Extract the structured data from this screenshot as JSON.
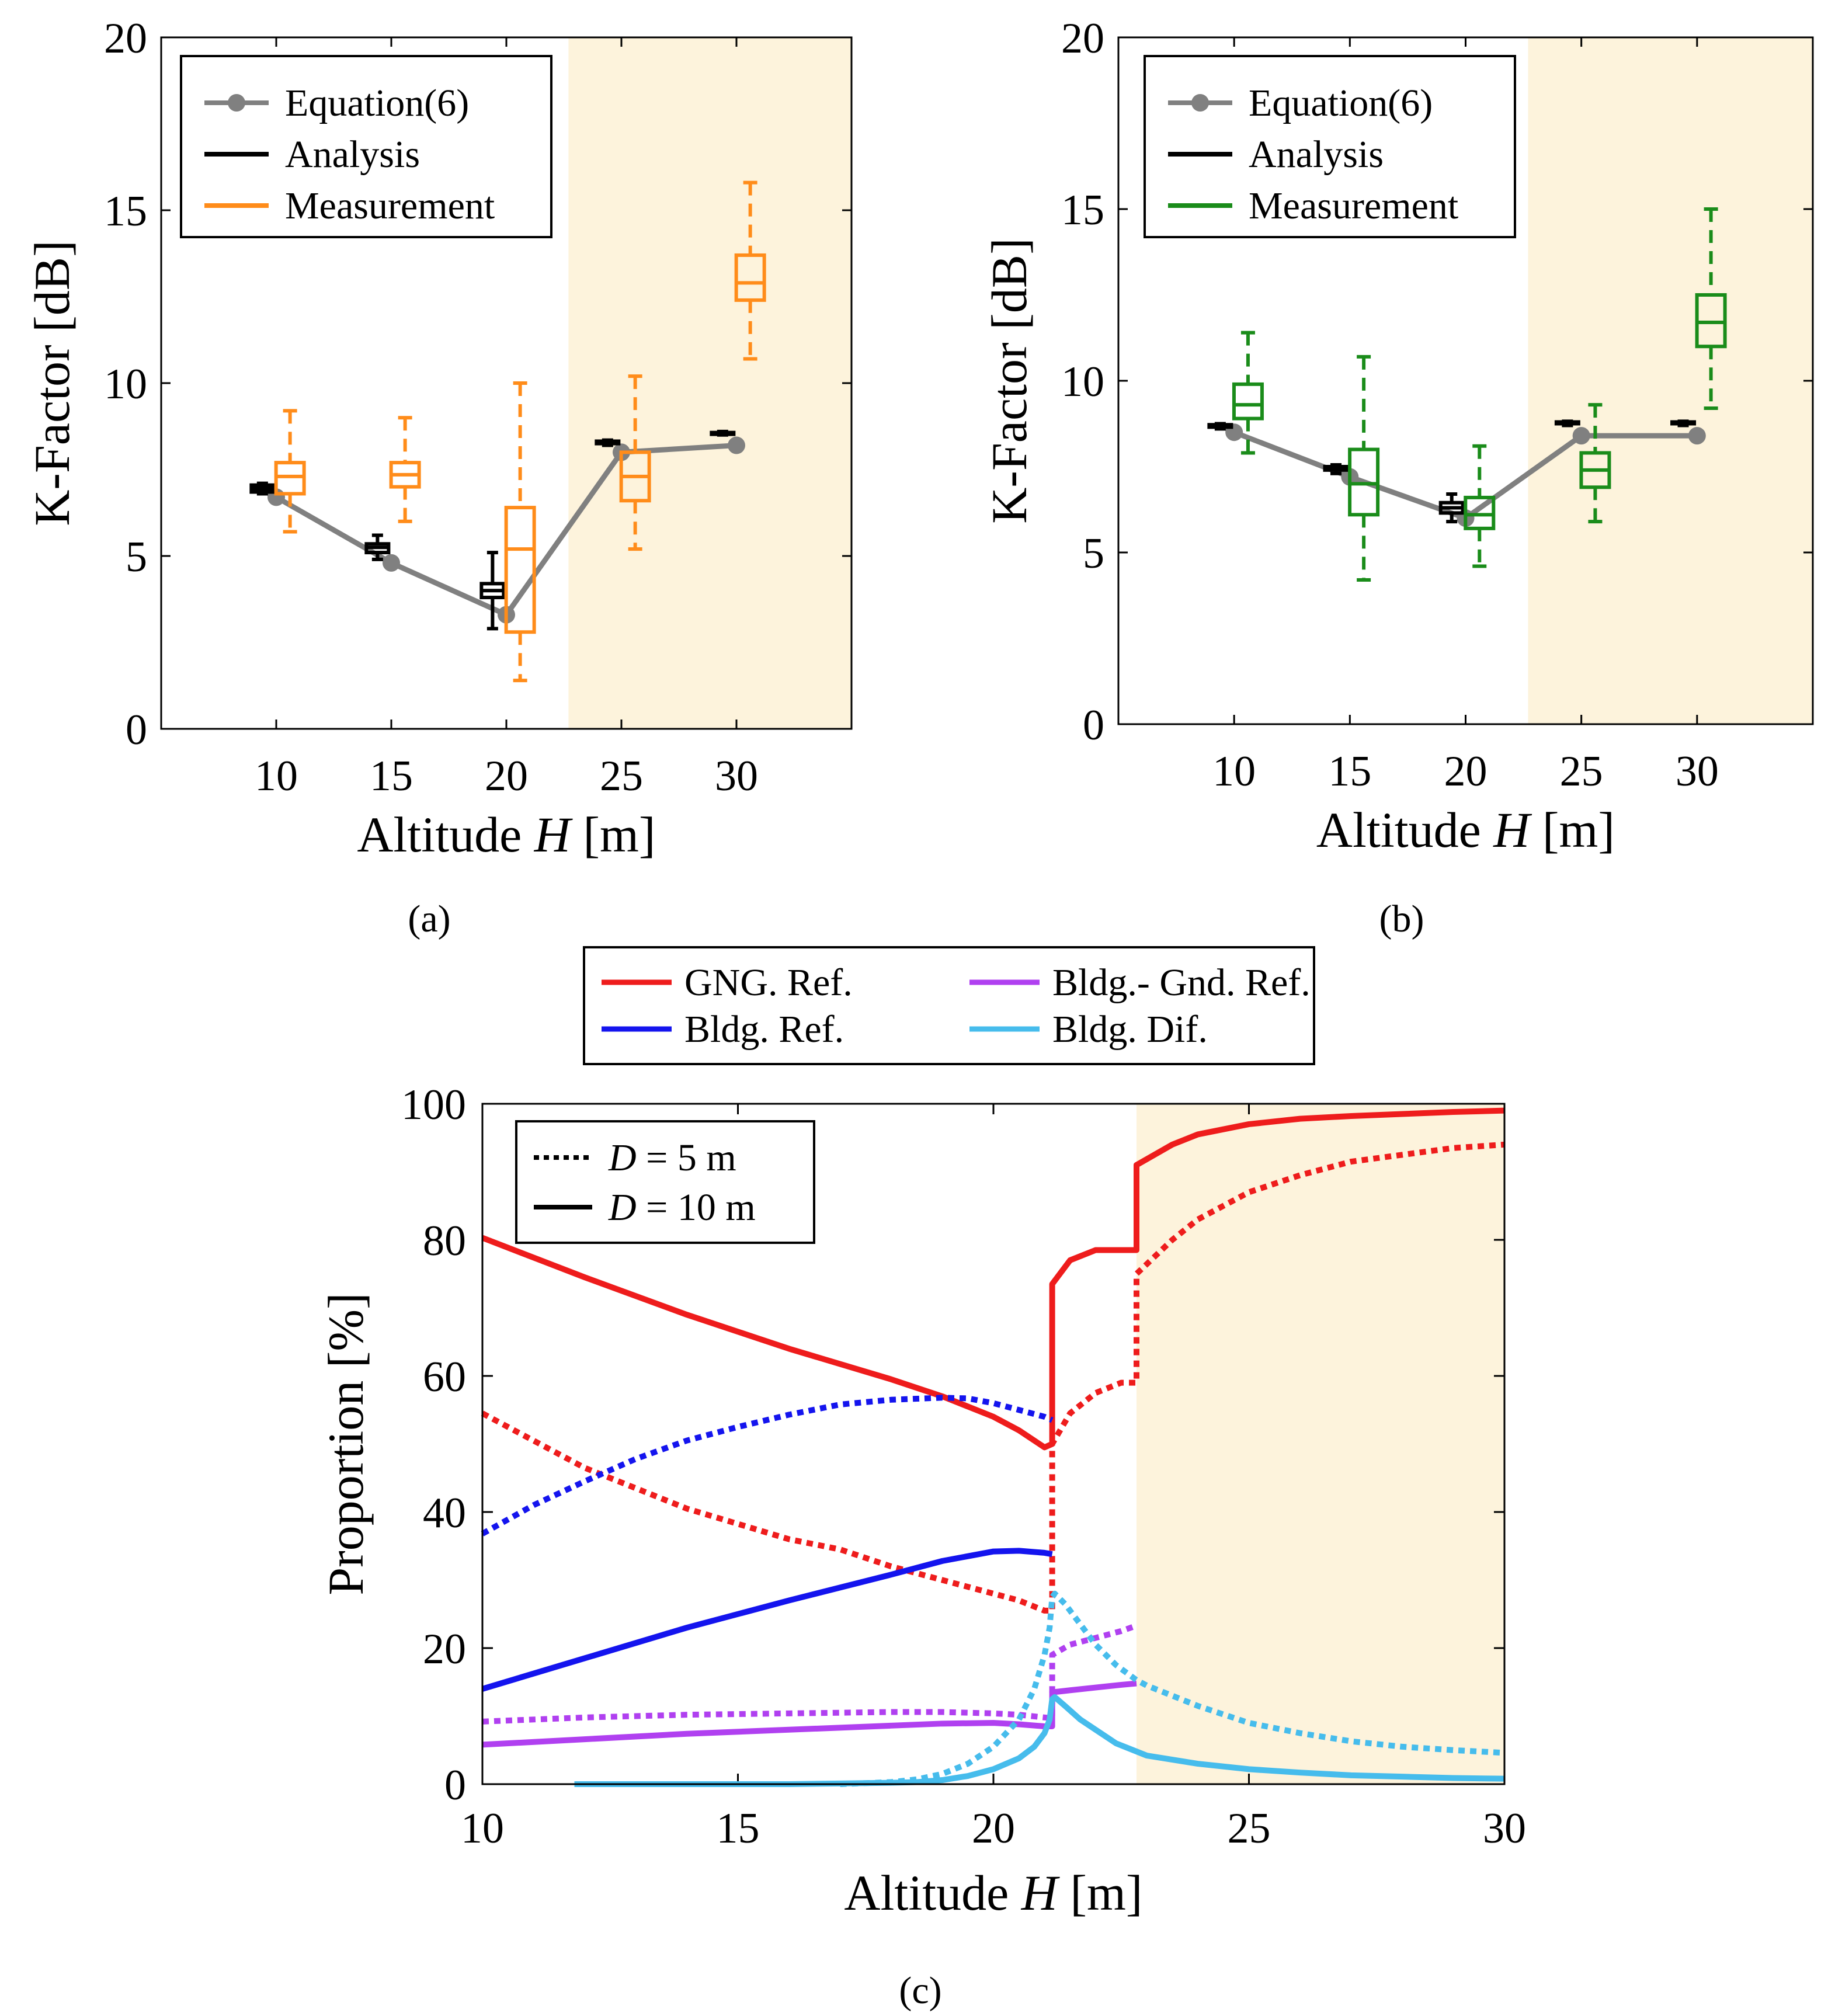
{
  "chart_data": [
    {
      "panel": "a",
      "type": "box",
      "caption": "(a)",
      "xlabel": "Altitude H [m]",
      "xlabel_parts": {
        "prefix": "Altitude ",
        "var": "H",
        "suffix": " [m]"
      },
      "ylabel": "K-Factor [dB]",
      "xlim": [
        5,
        35
      ],
      "ylim": [
        0,
        20
      ],
      "xticks": [
        10,
        15,
        20,
        25,
        30
      ],
      "yticks": [
        0,
        5,
        10,
        15,
        20
      ],
      "shaded_region": {
        "from": 22.7,
        "to": 35,
        "color": "#fdf3dc"
      },
      "legend": {
        "location": "top-left",
        "entries": [
          {
            "label": "Equation(6)",
            "color": "#808080",
            "marker": "circle"
          },
          {
            "label": "Analysis",
            "color": "#000000"
          },
          {
            "label": "Measurement",
            "color": "#ff8c1a"
          }
        ]
      },
      "equation": {
        "color": "#808080",
        "x": [
          10,
          15,
          20,
          25,
          30
        ],
        "y": [
          6.7,
          4.8,
          3.3,
          8.0,
          8.2
        ]
      },
      "analysis": {
        "color": "#000000",
        "offset": -0.6,
        "boxes": [
          {
            "x": 10,
            "whislo": 6.8,
            "q1": 6.85,
            "med": 6.95,
            "q3": 7.05,
            "whishi": 7.1
          },
          {
            "x": 15,
            "whislo": 4.9,
            "q1": 5.1,
            "med": 5.25,
            "q3": 5.35,
            "whishi": 5.6
          },
          {
            "x": 20,
            "whislo": 2.9,
            "q1": 3.8,
            "med": 4.0,
            "q3": 4.2,
            "whishi": 5.1
          },
          {
            "x": 25,
            "whislo": 8.2,
            "q1": 8.25,
            "med": 8.3,
            "q3": 8.32,
            "whishi": 8.35
          },
          {
            "x": 30,
            "whislo": 8.5,
            "q1": 8.52,
            "med": 8.55,
            "q3": 8.57,
            "whishi": 8.6
          }
        ]
      },
      "measurement": {
        "color": "#ff8c1a",
        "offset": 0.6,
        "boxes": [
          {
            "x": 10,
            "whislo": 5.7,
            "q1": 6.8,
            "med": 7.3,
            "q3": 7.7,
            "whishi": 9.2
          },
          {
            "x": 15,
            "whislo": 6.0,
            "q1": 7.0,
            "med": 7.35,
            "q3": 7.7,
            "whishi": 9.0
          },
          {
            "x": 20,
            "whislo": 1.4,
            "q1": 2.8,
            "med": 5.2,
            "q3": 6.4,
            "whishi": 10.0
          },
          {
            "x": 25,
            "whislo": 5.2,
            "q1": 6.6,
            "med": 7.3,
            "q3": 8.0,
            "whishi": 10.2
          },
          {
            "x": 30,
            "whislo": 10.7,
            "q1": 12.4,
            "med": 12.9,
            "q3": 13.7,
            "whishi": 15.8
          }
        ]
      }
    },
    {
      "panel": "b",
      "type": "box",
      "caption": "(b)",
      "xlabel": "Altitude H [m]",
      "xlabel_parts": {
        "prefix": "Altitude ",
        "var": "H",
        "suffix": " [m]"
      },
      "ylabel": "K-Factor [dB]",
      "xlim": [
        5,
        35
      ],
      "ylim": [
        0,
        20
      ],
      "xticks": [
        10,
        15,
        20,
        25,
        30
      ],
      "yticks": [
        0,
        5,
        10,
        15,
        20
      ],
      "shaded_region": {
        "from": 22.7,
        "to": 35,
        "color": "#fdf3dc"
      },
      "legend": {
        "location": "top-left",
        "entries": [
          {
            "label": "Equation(6)",
            "color": "#808080",
            "marker": "circle"
          },
          {
            "label": "Analysis",
            "color": "#000000"
          },
          {
            "label": "Measurement",
            "color": "#1a8c1a"
          }
        ]
      },
      "equation": {
        "color": "#808080",
        "x": [
          10,
          15,
          20,
          25,
          30
        ],
        "y": [
          8.5,
          7.2,
          6.0,
          8.4,
          8.4
        ]
      },
      "analysis": {
        "color": "#000000",
        "offset": -0.6,
        "boxes": [
          {
            "x": 10,
            "whislo": 8.6,
            "q1": 8.65,
            "med": 8.7,
            "q3": 8.72,
            "whishi": 8.75
          },
          {
            "x": 15,
            "whislo": 7.3,
            "q1": 7.4,
            "med": 7.45,
            "q3": 7.5,
            "whishi": 7.55
          },
          {
            "x": 20,
            "whislo": 5.9,
            "q1": 6.15,
            "med": 6.3,
            "q3": 6.45,
            "whishi": 6.7
          },
          {
            "x": 25,
            "whislo": 8.7,
            "q1": 8.75,
            "med": 8.78,
            "q3": 8.8,
            "whishi": 8.82
          },
          {
            "x": 30,
            "whislo": 8.7,
            "q1": 8.75,
            "med": 8.78,
            "q3": 8.8,
            "whishi": 8.82
          }
        ]
      },
      "measurement": {
        "color": "#1a8c1a",
        "offset": 0.6,
        "boxes": [
          {
            "x": 10,
            "whislo": 7.9,
            "q1": 8.9,
            "med": 9.3,
            "q3": 9.9,
            "whishi": 11.4
          },
          {
            "x": 15,
            "whislo": 4.2,
            "q1": 6.1,
            "med": 7.0,
            "q3": 8.0,
            "whishi": 10.7
          },
          {
            "x": 20,
            "whislo": 4.6,
            "q1": 5.7,
            "med": 6.1,
            "q3": 6.6,
            "whishi": 8.1
          },
          {
            "x": 25,
            "whislo": 5.9,
            "q1": 6.9,
            "med": 7.4,
            "q3": 7.9,
            "whishi": 9.3
          },
          {
            "x": 30,
            "whislo": 9.2,
            "q1": 11.0,
            "med": 11.7,
            "q3": 12.5,
            "whishi": 15.0
          }
        ]
      }
    },
    {
      "panel": "c",
      "type": "line",
      "caption": "(c)",
      "xlabel": "Altitude H [m]",
      "xlabel_parts": {
        "prefix": "Altitude ",
        "var": "H",
        "suffix": " [m]"
      },
      "ylabel": "Proportion [%]",
      "xlim": [
        10,
        30
      ],
      "ylim": [
        0,
        100
      ],
      "xticks": [
        10,
        15,
        20,
        25,
        30
      ],
      "yticks": [
        0,
        20,
        40,
        60,
        80,
        100
      ],
      "shaded_region": {
        "from": 22.8,
        "to": 30,
        "color": "#fdf3dc"
      },
      "color_legend": [
        {
          "label": "GNG. Ref.",
          "color": "#ee1c1c"
        },
        {
          "label": "Bldg.- Gnd. Ref.",
          "color": "#b040f0"
        },
        {
          "label": "Bldg. Ref.",
          "color": "#1414ee"
        },
        {
          "label": "Bldg. Dif.",
          "color": "#46bcec"
        }
      ],
      "style_legend": {
        "location": "top-left",
        "entries": [
          {
            "var": "D",
            "label": "= 5 m",
            "style": "dotted"
          },
          {
            "var": "D",
            "label": "= 10 m",
            "style": "solid"
          }
        ]
      },
      "series": [
        {
          "name": "GNG. Ref.",
          "D": "10 m",
          "style": "solid",
          "color": "#ee1c1c",
          "x": [
            10,
            12,
            14,
            16,
            18,
            19,
            20,
            20.5,
            21,
            21.15,
            21.15,
            21.5,
            22,
            22.5,
            22.8,
            22.8,
            23.5,
            24,
            25,
            26,
            27,
            28,
            29,
            30
          ],
          "y": [
            80.3,
            74.5,
            69,
            64,
            59.5,
            57,
            54,
            52,
            49.5,
            50,
            73.5,
            77,
            78.5,
            78.5,
            78.5,
            91,
            94,
            95.5,
            97,
            97.8,
            98.2,
            98.5,
            98.8,
            99
          ]
        },
        {
          "name": "GNG. Ref.",
          "D": "5 m",
          "style": "dotted",
          "color": "#ee1c1c",
          "x": [
            10,
            12,
            14,
            16,
            17,
            18,
            19,
            20,
            20.5,
            21,
            21.15,
            21.15,
            21.5,
            22,
            22.5,
            22.8,
            22.8,
            23.5,
            24,
            25,
            26,
            27,
            28,
            29,
            30
          ],
          "y": [
            54.5,
            46.5,
            40.5,
            36,
            34.5,
            32,
            30,
            28,
            27,
            25.5,
            25.5,
            50,
            54.5,
            57.5,
            59,
            59,
            75,
            80,
            83,
            87,
            89.5,
            91.5,
            92.5,
            93.5,
            94
          ]
        },
        {
          "name": "Bldg. Ref.",
          "D": "10 m",
          "style": "solid",
          "color": "#1414ee",
          "x": [
            10,
            12,
            14,
            16,
            18,
            19,
            20,
            20.5,
            21,
            21.15
          ],
          "y": [
            14,
            18.5,
            23,
            27,
            30.8,
            32.8,
            34.2,
            34.3,
            34,
            33.8
          ]
        },
        {
          "name": "Bldg. Ref.",
          "D": "5 m",
          "style": "dotted",
          "color": "#1414ee",
          "x": [
            10,
            11,
            12,
            13,
            14,
            15,
            16,
            17,
            18,
            19,
            19.5,
            20,
            20.5,
            21,
            21.15
          ],
          "y": [
            36.8,
            41,
            44.5,
            47.8,
            50.5,
            52.5,
            54.3,
            55.8,
            56.5,
            56.8,
            56.7,
            56,
            55,
            54,
            53.5
          ]
        },
        {
          "name": "Bldg.- Gnd. Ref.",
          "D": "10 m",
          "style": "solid",
          "color": "#b040f0",
          "x": [
            10,
            12,
            14,
            16,
            18,
            19,
            20,
            20.5,
            21,
            21.15,
            21.15,
            21.5,
            22,
            22.5,
            22.8
          ],
          "y": [
            5.8,
            6.6,
            7.4,
            8,
            8.6,
            8.9,
            9,
            8.8,
            8.5,
            8.5,
            13.5,
            13.8,
            14.2,
            14.6,
            14.8
          ]
        },
        {
          "name": "Bldg.- Gnd. Ref.",
          "D": "5 m",
          "style": "dotted",
          "color": "#b040f0",
          "x": [
            10,
            12,
            14,
            16,
            18,
            19,
            20,
            20.5,
            21,
            21.15,
            21.15,
            21.5,
            22,
            22.5,
            22.8
          ],
          "y": [
            9.2,
            9.8,
            10.2,
            10.4,
            10.6,
            10.6,
            10.4,
            10.2,
            9.8,
            9.7,
            19,
            20.5,
            21.5,
            22.5,
            23.3
          ]
        },
        {
          "name": "Bldg. Dif.",
          "D": "10 m",
          "style": "solid",
          "color": "#46bcec",
          "x": [
            11.8,
            14,
            16,
            17,
            18,
            18.5,
            19,
            19.5,
            20,
            20.5,
            20.8,
            21,
            21.1,
            21.15,
            21.2,
            21.4,
            21.7,
            22,
            22.4,
            22.8,
            23,
            24,
            25,
            26,
            27,
            28,
            29,
            30
          ],
          "y": [
            0,
            0,
            0,
            0.1,
            0.2,
            0.3,
            0.6,
            1.2,
            2.2,
            3.8,
            5.5,
            7.5,
            9.5,
            12.5,
            12.8,
            11.5,
            9.5,
            8,
            6,
            4.8,
            4.2,
            3,
            2.2,
            1.7,
            1.3,
            1.1,
            0.9,
            0.8
          ]
        },
        {
          "name": "Bldg. Dif.",
          "D": "5 m",
          "style": "dotted",
          "color": "#46bcec",
          "x": [
            17,
            18,
            18.5,
            19,
            19.5,
            20,
            20.5,
            20.8,
            21,
            21.1,
            21.15,
            21.2,
            21.4,
            21.7,
            22,
            22.4,
            22.8,
            23,
            24,
            25,
            26,
            27,
            28,
            29,
            30
          ],
          "y": [
            0,
            0.3,
            0.7,
            1.5,
            3,
            5.5,
            9.5,
            14,
            19,
            23,
            27.5,
            28,
            26.5,
            23.5,
            20.5,
            17.5,
            15.3,
            14.5,
            11.5,
            9,
            7.5,
            6.3,
            5.5,
            5,
            4.6
          ]
        }
      ]
    }
  ]
}
